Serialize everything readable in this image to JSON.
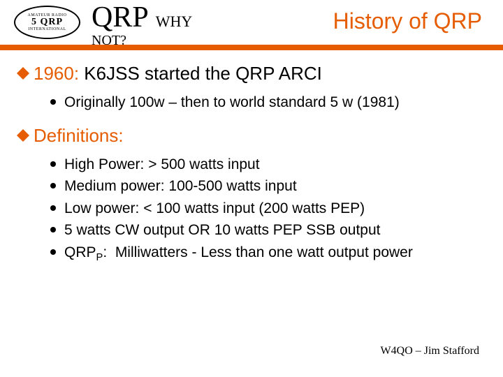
{
  "header": {
    "logo_top": "AMATEUR RADIO",
    "logo_mid": "5 QRP",
    "logo_bot": "INTERNATIONAL",
    "qrp": "QRP",
    "why": "WHY",
    "not": "NOT?",
    "title": "History of QRP"
  },
  "colors": {
    "accent": "#e65c00",
    "text": "#000000",
    "background": "#ffffff"
  },
  "bullets": [
    {
      "year": "1960:",
      "text": "  K6JSS started the QRP ARCI",
      "subs": [
        "Originally 100w – then to world standard 5 w (1981)"
      ]
    },
    {
      "heading": "Definitions:",
      "subs": [
        "High Power:  > 500 watts input",
        "Medium power: 100-500 watts input",
        "Low power: < 100 watts input (200 watts PEP)",
        "5 watts CW output OR 10 watts PEP SSB output",
        "QRPP:  Milliwatters - Less than one watt output power"
      ]
    }
  ],
  "footer": "W4QO – Jim Stafford"
}
